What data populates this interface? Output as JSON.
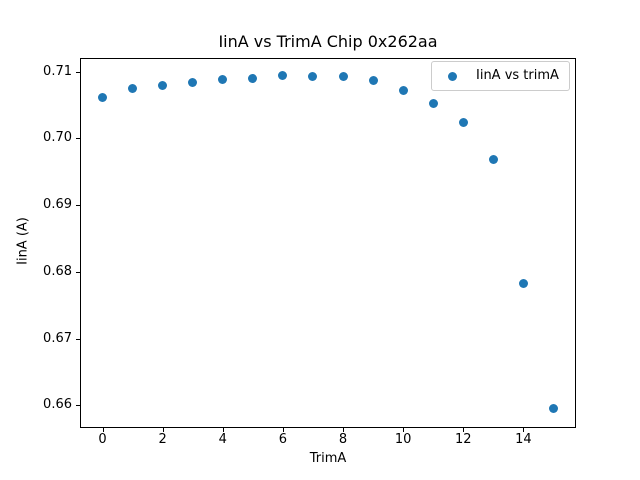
{
  "figure": {
    "background": "#ffffff",
    "text_color": "#000000",
    "axis_color": "#000000",
    "legend_border_color": "#cccccc"
  },
  "chart_data": {
    "type": "scatter",
    "title": "IinA vs TrimA Chip 0x262aa",
    "xlabel": "TrimA",
    "ylabel": "IinA (A)",
    "legend": {
      "label": "IinA vs trimA",
      "position": "upper right",
      "marker": "circle"
    },
    "x": [
      0,
      1,
      2,
      3,
      4,
      5,
      6,
      7,
      8,
      9,
      10,
      11,
      12,
      13,
      14,
      15
    ],
    "y": [
      0.7061,
      0.7074,
      0.7079,
      0.7084,
      0.7088,
      0.709,
      0.7094,
      0.7093,
      0.7092,
      0.7086,
      0.7071,
      0.7053,
      0.7024,
      0.6968,
      0.6782,
      0.6595
    ],
    "xlim": [
      -0.75,
      15.75
    ],
    "ylim": [
      0.6567,
      0.7121
    ],
    "xticks": {
      "values": [
        0,
        2,
        4,
        6,
        8,
        10,
        12,
        14
      ],
      "labels": [
        "0",
        "2",
        "4",
        "6",
        "8",
        "10",
        "12",
        "14"
      ]
    },
    "yticks": {
      "values": [
        0.66,
        0.67,
        0.68,
        0.69,
        0.7,
        0.71
      ],
      "labels": [
        "0.66",
        "0.67",
        "0.68",
        "0.69",
        "0.70",
        "0.71"
      ]
    },
    "marker_color": "#1f77b4",
    "grid": false
  }
}
